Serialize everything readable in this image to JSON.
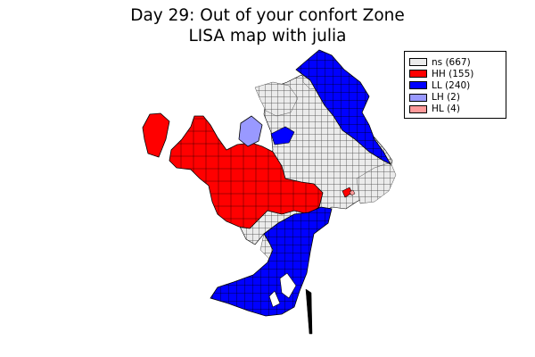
{
  "title": {
    "line1": "Day 29: Out of your confort Zone",
    "line2": "LISA map with julia"
  },
  "legend": {
    "items": [
      {
        "label": "ns (667)",
        "color": "#ebebeb"
      },
      {
        "label": "HH (155)",
        "color": "#ff0000"
      },
      {
        "label": "LL (240)",
        "color": "#0000ff"
      },
      {
        "label": "LH (2)",
        "color": "#9999ff"
      },
      {
        "label": "HL (4)",
        "color": "#ff9999"
      }
    ]
  },
  "colors": {
    "ns": "#ebebeb",
    "hh": "#ff0000",
    "ll": "#0000ff",
    "lh": "#9999ff",
    "hl": "#ff9999",
    "boundary": "#000000"
  }
}
